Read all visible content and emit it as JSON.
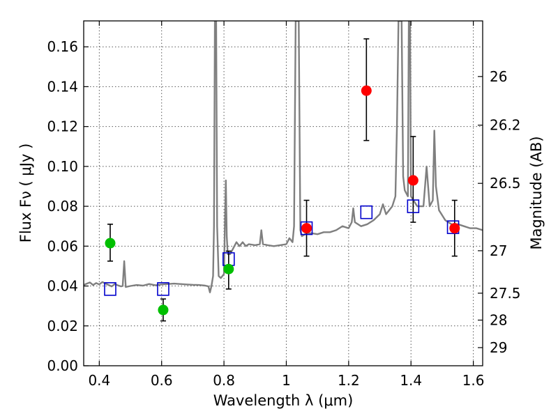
{
  "chart_data": {
    "type": "scatter",
    "xlabel": "Wavelength  λ (μm)",
    "ylabel": "Flux  Fν  ( μJy )",
    "ylabel_right": "Magnitude (AB)",
    "xlim": [
      0.35,
      1.63
    ],
    "ylim": [
      0.0,
      0.173
    ],
    "grid": true,
    "x_ticks": [
      0.4,
      0.6,
      0.8,
      1.0,
      1.2,
      1.4,
      1.6
    ],
    "x_tick_labels": [
      "0.4",
      "0.6",
      "0.8",
      "1",
      "1.2",
      "1.4",
      "1.6"
    ],
    "y_ticks": [
      0.0,
      0.02,
      0.04,
      0.06,
      0.08,
      0.1,
      0.12,
      0.14,
      0.16
    ],
    "y_tick_labels": [
      "0.00",
      "0.02",
      "0.04",
      "0.06",
      "0.08",
      "0.10",
      "0.12",
      "0.14",
      "0.16"
    ],
    "right_ticks": [
      {
        "flux": 0.1451,
        "label": "26"
      },
      {
        "flux": 0.1207,
        "label": "26.2"
      },
      {
        "flux": 0.0915,
        "label": "26.5"
      },
      {
        "flux": 0.0577,
        "label": "27"
      },
      {
        "flux": 0.0364,
        "label": "27.5"
      },
      {
        "flux": 0.0229,
        "label": "28"
      },
      {
        "flux": 0.0091,
        "label": "29"
      }
    ],
    "colors": {
      "spectrum": "#7f7f7f",
      "green_points": "#00bf00",
      "red_points": "#ff0000",
      "model_squares": "#0000cc",
      "errorbar": "#000000",
      "grid": "#555555"
    },
    "series": [
      {
        "kind": "spectrum_line",
        "points": [
          [
            0.35,
            0.0405
          ],
          [
            0.36,
            0.0412
          ],
          [
            0.37,
            0.0418
          ],
          [
            0.38,
            0.0405
          ],
          [
            0.39,
            0.0415
          ],
          [
            0.4,
            0.0408
          ],
          [
            0.41,
            0.042
          ],
          [
            0.42,
            0.0412
          ],
          [
            0.43,
            0.0405
          ],
          [
            0.44,
            0.0398
          ],
          [
            0.45,
            0.041
          ],
          [
            0.46,
            0.0403
          ],
          [
            0.47,
            0.0398
          ],
          [
            0.475,
            0.04
          ],
          [
            0.48,
            0.0525
          ],
          [
            0.485,
            0.0395
          ],
          [
            0.5,
            0.04
          ],
          [
            0.52,
            0.0405
          ],
          [
            0.54,
            0.0402
          ],
          [
            0.56,
            0.041
          ],
          [
            0.58,
            0.0404
          ],
          [
            0.6,
            0.0408
          ],
          [
            0.62,
            0.041
          ],
          [
            0.64,
            0.0412
          ],
          [
            0.66,
            0.041
          ],
          [
            0.68,
            0.0408
          ],
          [
            0.7,
            0.0406
          ],
          [
            0.72,
            0.0405
          ],
          [
            0.74,
            0.0402
          ],
          [
            0.75,
            0.0398
          ],
          [
            0.755,
            0.0368
          ],
          [
            0.76,
            0.04
          ],
          [
            0.765,
            0.045
          ],
          [
            0.768,
            0.07
          ],
          [
            0.771,
            0.173
          ],
          [
            0.775,
            0.173
          ],
          [
            0.778,
            0.07
          ],
          [
            0.783,
            0.045
          ],
          [
            0.79,
            0.044
          ],
          [
            0.8,
            0.046
          ],
          [
            0.803,
            0.07
          ],
          [
            0.806,
            0.093
          ],
          [
            0.809,
            0.065
          ],
          [
            0.812,
            0.056
          ],
          [
            0.82,
            0.056
          ],
          [
            0.83,
            0.059
          ],
          [
            0.84,
            0.062
          ],
          [
            0.85,
            0.06
          ],
          [
            0.86,
            0.062
          ],
          [
            0.87,
            0.06
          ],
          [
            0.88,
            0.061
          ],
          [
            0.9,
            0.0605
          ],
          [
            0.915,
            0.061
          ],
          [
            0.92,
            0.068
          ],
          [
            0.925,
            0.061
          ],
          [
            0.94,
            0.0605
          ],
          [
            0.96,
            0.06
          ],
          [
            0.98,
            0.0605
          ],
          [
            1.0,
            0.061
          ],
          [
            1.01,
            0.064
          ],
          [
            1.02,
            0.062
          ],
          [
            1.025,
            0.07
          ],
          [
            1.03,
            0.173
          ],
          [
            1.04,
            0.173
          ],
          [
            1.045,
            0.068
          ],
          [
            1.05,
            0.065
          ],
          [
            1.06,
            0.066
          ],
          [
            1.08,
            0.0665
          ],
          [
            1.1,
            0.066
          ],
          [
            1.12,
            0.067
          ],
          [
            1.14,
            0.067
          ],
          [
            1.16,
            0.068
          ],
          [
            1.18,
            0.07
          ],
          [
            1.2,
            0.069
          ],
          [
            1.21,
            0.072
          ],
          [
            1.215,
            0.079
          ],
          [
            1.22,
            0.072
          ],
          [
            1.24,
            0.07
          ],
          [
            1.26,
            0.071
          ],
          [
            1.28,
            0.073
          ],
          [
            1.3,
            0.076
          ],
          [
            1.31,
            0.081
          ],
          [
            1.32,
            0.076
          ],
          [
            1.34,
            0.08
          ],
          [
            1.35,
            0.085
          ],
          [
            1.355,
            0.12
          ],
          [
            1.36,
            0.173
          ],
          [
            1.37,
            0.173
          ],
          [
            1.375,
            0.095
          ],
          [
            1.38,
            0.088
          ],
          [
            1.39,
            0.085
          ],
          [
            1.393,
            0.173
          ],
          [
            1.397,
            0.173
          ],
          [
            1.4,
            0.085
          ],
          [
            1.42,
            0.08
          ],
          [
            1.44,
            0.08
          ],
          [
            1.45,
            0.1
          ],
          [
            1.46,
            0.08
          ],
          [
            1.47,
            0.083
          ],
          [
            1.475,
            0.118
          ],
          [
            1.48,
            0.09
          ],
          [
            1.49,
            0.078
          ],
          [
            1.51,
            0.073
          ],
          [
            1.52,
            0.072
          ],
          [
            1.53,
            0.071
          ],
          [
            1.54,
            0.07
          ],
          [
            1.55,
            0.071
          ],
          [
            1.57,
            0.07
          ],
          [
            1.59,
            0.069
          ],
          [
            1.61,
            0.069
          ],
          [
            1.63,
            0.068
          ]
        ]
      },
      {
        "kind": "model_squares",
        "points": [
          [
            0.435,
            0.0385
          ],
          [
            0.605,
            0.0385
          ],
          [
            0.815,
            0.0535
          ],
          [
            1.065,
            0.069
          ],
          [
            1.257,
            0.077
          ],
          [
            1.407,
            0.08
          ],
          [
            1.535,
            0.0695
          ]
        ]
      },
      {
        "kind": "green_points",
        "points": [
          {
            "x": 0.435,
            "y": 0.0615,
            "lo": 0.0525,
            "hi": 0.071
          },
          {
            "x": 0.605,
            "y": 0.028,
            "lo": 0.0225,
            "hi": 0.0335
          },
          {
            "x": 0.815,
            "y": 0.0485,
            "lo": 0.0385,
            "hi": 0.0575
          }
        ]
      },
      {
        "kind": "red_points",
        "points": [
          {
            "x": 1.065,
            "y": 0.069,
            "lo": 0.055,
            "hi": 0.083
          },
          {
            "x": 1.257,
            "y": 0.138,
            "lo": 0.113,
            "hi": 0.164
          },
          {
            "x": 1.407,
            "y": 0.093,
            "lo": 0.072,
            "hi": 0.115
          },
          {
            "x": 1.54,
            "y": 0.069,
            "lo": 0.055,
            "hi": 0.083
          }
        ]
      }
    ]
  }
}
